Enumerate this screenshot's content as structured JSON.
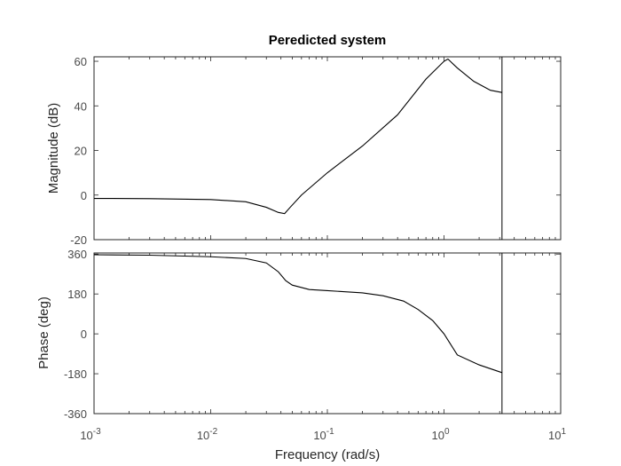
{
  "chart_data": {
    "type": "line",
    "title": "Peredicted system",
    "xlabel": "Frequency  (rad/s)",
    "xscale": "log",
    "xlim": [
      0.001,
      10
    ],
    "x_tick_labels": [
      {
        "base": "10",
        "exp": "-3"
      },
      {
        "base": "10",
        "exp": "-2"
      },
      {
        "base": "10",
        "exp": "-1"
      },
      {
        "base": "10",
        "exp": "0"
      },
      {
        "base": "10",
        "exp": "1"
      }
    ],
    "x_tick_values": [
      0.001,
      0.01,
      0.1,
      1,
      10
    ],
    "vertical_line_x": 3.14,
    "grid": false,
    "magnitude": {
      "ylabel": "Magnitude (dB)",
      "ylim": [
        -20,
        62
      ],
      "yticks": [
        -20,
        0,
        20,
        40,
        60
      ],
      "ytick_labels": [
        "-20",
        "0",
        "20",
        "40",
        "60"
      ],
      "x": [
        0.001,
        0.003,
        0.01,
        0.02,
        0.03,
        0.038,
        0.043,
        0.048,
        0.06,
        0.1,
        0.2,
        0.4,
        0.7,
        1.0,
        1.08,
        1.3,
        1.8,
        2.5,
        3.14
      ],
      "y": [
        -1.5,
        -1.6,
        -2,
        -3,
        -5.5,
        -7.8,
        -8.3,
        -5.5,
        0,
        10,
        22,
        36,
        52,
        60,
        61,
        57,
        51,
        47,
        46
      ]
    },
    "phase": {
      "ylabel": "Phase (deg)",
      "ylim": [
        -360,
        365
      ],
      "yticks": [
        -360,
        -180,
        0,
        180,
        360
      ],
      "ytick_labels": [
        "-360",
        "-180",
        "0",
        "180",
        "360"
      ],
      "x": [
        0.001,
        0.003,
        0.01,
        0.02,
        0.03,
        0.038,
        0.044,
        0.05,
        0.07,
        0.1,
        0.2,
        0.3,
        0.45,
        0.6,
        0.8,
        1.0,
        1.3,
        2.0,
        3.14
      ],
      "y": [
        357,
        355,
        348,
        340,
        320,
        280,
        240,
        220,
        200,
        195,
        185,
        172,
        148,
        110,
        60,
        0,
        -95,
        -140,
        -175
      ]
    }
  }
}
